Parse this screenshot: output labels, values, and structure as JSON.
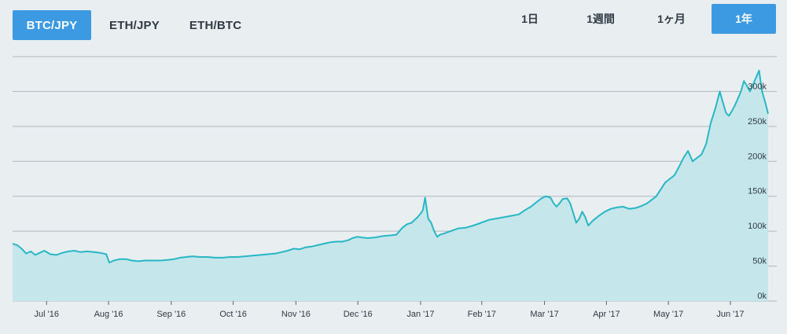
{
  "pair_tabs": [
    {
      "label": "BTC/JPY",
      "active": true
    },
    {
      "label": "ETH/JPY",
      "active": false
    },
    {
      "label": "ETH/BTC",
      "active": false
    }
  ],
  "range_tabs": [
    {
      "label": "1日",
      "active": false
    },
    {
      "label": "1週間",
      "active": false
    },
    {
      "label": "1ヶ月",
      "active": false
    },
    {
      "label": "1年",
      "active": true
    }
  ],
  "chart_data": {
    "type": "area",
    "y_axis": {
      "ticks": [
        "0k",
        "50k",
        "100k",
        "150k",
        "200k",
        "250k",
        "300k"
      ],
      "values": [
        0,
        50000,
        100000,
        150000,
        200000,
        250000,
        300000
      ],
      "ylim": [
        0,
        350000
      ]
    },
    "x_axis": {
      "labels": [
        "Jul '16",
        "Aug '16",
        "Sep '16",
        "Oct '16",
        "Nov '16",
        "Dec '16",
        "Jan '17",
        "Feb '17",
        "Mar '17",
        "Apr '17",
        "May '17",
        "Jun '17"
      ],
      "positions": [
        0.045,
        0.127,
        0.21,
        0.292,
        0.375,
        0.457,
        0.54,
        0.621,
        0.704,
        0.786,
        0.868,
        0.95
      ]
    },
    "series": [
      {
        "values": [
          [
            0.0,
            82000
          ],
          [
            0.006,
            80000
          ],
          [
            0.012,
            75000
          ],
          [
            0.018,
            68000
          ],
          [
            0.024,
            71000
          ],
          [
            0.03,
            66000
          ],
          [
            0.036,
            69000
          ],
          [
            0.042,
            72000
          ],
          [
            0.05,
            67000
          ],
          [
            0.058,
            66000
          ],
          [
            0.066,
            69000
          ],
          [
            0.074,
            71000
          ],
          [
            0.082,
            72000
          ],
          [
            0.09,
            70000
          ],
          [
            0.098,
            71000
          ],
          [
            0.108,
            70000
          ],
          [
            0.116,
            69000
          ],
          [
            0.124,
            67000
          ],
          [
            0.128,
            55000
          ],
          [
            0.134,
            58000
          ],
          [
            0.142,
            60000
          ],
          [
            0.15,
            60000
          ],
          [
            0.158,
            58000
          ],
          [
            0.166,
            57000
          ],
          [
            0.176,
            58000
          ],
          [
            0.186,
            58000
          ],
          [
            0.196,
            58000
          ],
          [
            0.206,
            59000
          ],
          [
            0.214,
            60000
          ],
          [
            0.222,
            62000
          ],
          [
            0.23,
            63000
          ],
          [
            0.238,
            64000
          ],
          [
            0.248,
            63000
          ],
          [
            0.258,
            63000
          ],
          [
            0.268,
            62000
          ],
          [
            0.278,
            62000
          ],
          [
            0.288,
            63000
          ],
          [
            0.298,
            63000
          ],
          [
            0.308,
            64000
          ],
          [
            0.318,
            65000
          ],
          [
            0.328,
            66000
          ],
          [
            0.338,
            67000
          ],
          [
            0.348,
            68000
          ],
          [
            0.356,
            70000
          ],
          [
            0.364,
            72000
          ],
          [
            0.372,
            75000
          ],
          [
            0.38,
            74000
          ],
          [
            0.388,
            77000
          ],
          [
            0.396,
            78000
          ],
          [
            0.404,
            80000
          ],
          [
            0.412,
            82000
          ],
          [
            0.42,
            84000
          ],
          [
            0.428,
            85000
          ],
          [
            0.436,
            85000
          ],
          [
            0.444,
            87000
          ],
          [
            0.45,
            90000
          ],
          [
            0.456,
            92000
          ],
          [
            0.462,
            91000
          ],
          [
            0.47,
            90000
          ],
          [
            0.48,
            91000
          ],
          [
            0.49,
            93000
          ],
          [
            0.5,
            94000
          ],
          [
            0.508,
            95000
          ],
          [
            0.516,
            105000
          ],
          [
            0.522,
            110000
          ],
          [
            0.528,
            112000
          ],
          [
            0.532,
            116000
          ],
          [
            0.536,
            120000
          ],
          [
            0.54,
            125000
          ],
          [
            0.543,
            130000
          ],
          [
            0.546,
            148000
          ],
          [
            0.55,
            118000
          ],
          [
            0.554,
            112000
          ],
          [
            0.558,
            100000
          ],
          [
            0.562,
            92000
          ],
          [
            0.566,
            95000
          ],
          [
            0.572,
            97000
          ],
          [
            0.58,
            100000
          ],
          [
            0.59,
            104000
          ],
          [
            0.6,
            105000
          ],
          [
            0.61,
            108000
          ],
          [
            0.62,
            112000
          ],
          [
            0.63,
            116000
          ],
          [
            0.64,
            118000
          ],
          [
            0.65,
            120000
          ],
          [
            0.66,
            122000
          ],
          [
            0.67,
            124000
          ],
          [
            0.678,
            130000
          ],
          [
            0.686,
            135000
          ],
          [
            0.694,
            142000
          ],
          [
            0.7,
            147000
          ],
          [
            0.706,
            150000
          ],
          [
            0.712,
            148000
          ],
          [
            0.716,
            140000
          ],
          [
            0.72,
            135000
          ],
          [
            0.724,
            140000
          ],
          [
            0.728,
            146000
          ],
          [
            0.734,
            147000
          ],
          [
            0.738,
            140000
          ],
          [
            0.742,
            126000
          ],
          [
            0.746,
            112000
          ],
          [
            0.75,
            118000
          ],
          [
            0.754,
            128000
          ],
          [
            0.758,
            120000
          ],
          [
            0.762,
            108000
          ],
          [
            0.768,
            115000
          ],
          [
            0.776,
            122000
          ],
          [
            0.784,
            128000
          ],
          [
            0.792,
            132000
          ],
          [
            0.8,
            134000
          ],
          [
            0.808,
            135000
          ],
          [
            0.816,
            132000
          ],
          [
            0.824,
            133000
          ],
          [
            0.832,
            136000
          ],
          [
            0.84,
            140000
          ],
          [
            0.846,
            145000
          ],
          [
            0.852,
            150000
          ],
          [
            0.858,
            160000
          ],
          [
            0.864,
            170000
          ],
          [
            0.87,
            175000
          ],
          [
            0.876,
            180000
          ],
          [
            0.882,
            192000
          ],
          [
            0.888,
            205000
          ],
          [
            0.894,
            215000
          ],
          [
            0.9,
            200000
          ],
          [
            0.906,
            205000
          ],
          [
            0.912,
            210000
          ],
          [
            0.918,
            225000
          ],
          [
            0.924,
            255000
          ],
          [
            0.93,
            275000
          ],
          [
            0.936,
            300000
          ],
          [
            0.94,
            285000
          ],
          [
            0.944,
            270000
          ],
          [
            0.948,
            265000
          ],
          [
            0.952,
            272000
          ],
          [
            0.956,
            280000
          ],
          [
            0.96,
            290000
          ],
          [
            0.964,
            300000
          ],
          [
            0.968,
            315000
          ],
          [
            0.972,
            308000
          ],
          [
            0.976,
            300000
          ],
          [
            0.98,
            310000
          ],
          [
            0.984,
            320000
          ],
          [
            0.988,
            330000
          ],
          [
            0.992,
            300000
          ],
          [
            0.996,
            285000
          ],
          [
            1.0,
            268000
          ]
        ]
      }
    ],
    "colors": {
      "line": "#28b7c5",
      "fill": "#c5e6ea",
      "grid": "#9aa6ad",
      "axis_text": "#2f3a44"
    }
  }
}
